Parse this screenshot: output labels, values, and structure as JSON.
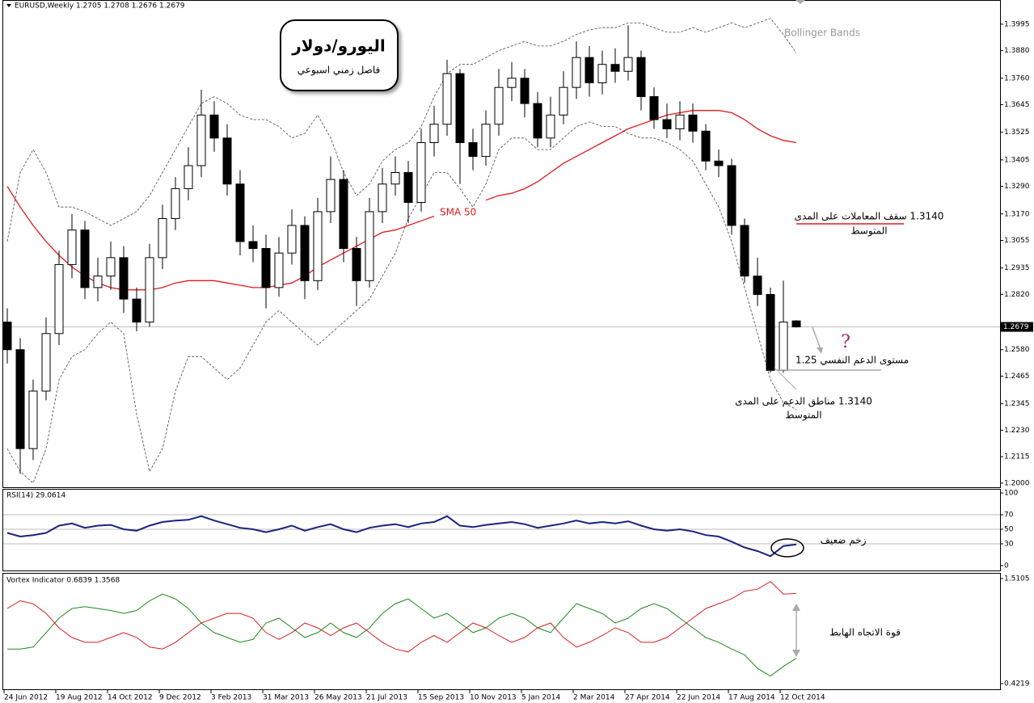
{
  "chart_data": [
    {
      "type": "candlestick",
      "title": "EURUSD,Weekly  1.2705 1.2708 1.2676 1.2679",
      "categories": [
        "24 Jun 2012",
        null,
        null,
        null,
        "19 Aug 2012",
        null,
        null,
        null,
        "14 Oct 2012",
        null,
        null,
        null,
        "9 Dec 2012",
        null,
        null,
        null,
        "3 Feb 2013",
        null,
        null,
        null,
        "31 Mar 2013",
        null,
        null,
        null,
        "26 May 2013",
        null,
        null,
        null,
        "21 Jul 2013",
        null,
        null,
        null,
        "15 Sep 2013",
        null,
        null,
        null,
        "10 Nov 2013",
        null,
        null,
        null,
        "5 Jan 2014",
        null,
        null,
        null,
        "2 Mar 2014",
        null,
        null,
        null,
        "27 Apr 2014",
        null,
        null,
        null,
        "22 Jun 2014",
        null,
        null,
        null,
        "17 Aug 2014",
        null,
        null,
        null,
        "12 Oct 2014",
        null
      ],
      "open": [
        1.27,
        1.258,
        1.215,
        1.24,
        1.265,
        1.295,
        1.31,
        1.285,
        1.29,
        1.298,
        1.28,
        1.27,
        1.298,
        1.315,
        1.328,
        1.338,
        1.36,
        1.35,
        1.33,
        1.305,
        1.302,
        1.285,
        1.3,
        1.312,
        1.288,
        1.318,
        1.332,
        1.302,
        1.288,
        1.318,
        1.33,
        1.335,
        1.322,
        1.348,
        1.356,
        1.378,
        1.348,
        1.342,
        1.356,
        1.372,
        1.376,
        1.365,
        1.35,
        1.36,
        1.372,
        1.385,
        1.374,
        1.382,
        1.379,
        1.385,
        1.368,
        1.358,
        1.354,
        1.36,
        1.353,
        1.34,
        1.338,
        1.312,
        1.29,
        1.282,
        1.249,
        1.2705
      ],
      "high": [
        1.276,
        1.263,
        1.245,
        1.272,
        1.301,
        1.317,
        1.314,
        1.298,
        1.305,
        1.303,
        1.285,
        1.304,
        1.321,
        1.333,
        1.346,
        1.371,
        1.366,
        1.356,
        1.336,
        1.312,
        1.308,
        1.307,
        1.319,
        1.316,
        1.324,
        1.342,
        1.336,
        1.307,
        1.324,
        1.337,
        1.342,
        1.34,
        1.354,
        1.364,
        1.384,
        1.38,
        1.354,
        1.362,
        1.38,
        1.383,
        1.38,
        1.37,
        1.368,
        1.379,
        1.392,
        1.39,
        1.388,
        1.389,
        1.399,
        1.388,
        1.372,
        1.365,
        1.366,
        1.365,
        1.356,
        1.345,
        1.341,
        1.315,
        1.298,
        1.285,
        1.288,
        1.2708
      ],
      "low": [
        1.252,
        1.204,
        1.21,
        1.236,
        1.26,
        1.289,
        1.28,
        1.279,
        1.284,
        1.274,
        1.266,
        1.268,
        1.293,
        1.31,
        1.323,
        1.333,
        1.344,
        1.325,
        1.299,
        1.296,
        1.276,
        1.281,
        1.295,
        1.28,
        1.284,
        1.313,
        1.296,
        1.277,
        1.285,
        1.313,
        1.325,
        1.313,
        1.318,
        1.342,
        1.351,
        1.33,
        1.336,
        1.338,
        1.351,
        1.366,
        1.359,
        1.346,
        1.346,
        1.356,
        1.367,
        1.368,
        1.369,
        1.374,
        1.375,
        1.362,
        1.354,
        1.35,
        1.349,
        1.348,
        1.336,
        1.333,
        1.308,
        1.287,
        1.277,
        1.248,
        1.248,
        1.2676
      ],
      "close": [
        1.258,
        1.215,
        1.24,
        1.265,
        1.295,
        1.31,
        1.285,
        1.29,
        1.298,
        1.28,
        1.27,
        1.298,
        1.315,
        1.328,
        1.338,
        1.36,
        1.35,
        1.33,
        1.305,
        1.302,
        1.285,
        1.3,
        1.312,
        1.288,
        1.318,
        1.332,
        1.302,
        1.288,
        1.318,
        1.33,
        1.335,
        1.322,
        1.348,
        1.356,
        1.378,
        1.348,
        1.342,
        1.356,
        1.372,
        1.376,
        1.365,
        1.35,
        1.36,
        1.372,
        1.385,
        1.374,
        1.382,
        1.379,
        1.385,
        1.368,
        1.358,
        1.354,
        1.36,
        1.353,
        1.34,
        1.338,
        1.312,
        1.29,
        1.282,
        1.249,
        1.27,
        1.2679
      ],
      "overlays": [
        {
          "name": "SMA 50",
          "color": "#e31a1c",
          "values": [
            1.329,
            1.32,
            1.312,
            1.305,
            1.299,
            1.294,
            1.29,
            1.287,
            1.285,
            1.284,
            1.284,
            1.284,
            1.285,
            1.287,
            1.288,
            1.288,
            1.288,
            1.287,
            1.286,
            1.285,
            1.285,
            1.286,
            1.287,
            1.29,
            1.294,
            1.297,
            1.3,
            1.303,
            1.306,
            1.309,
            1.31,
            1.312,
            1.314,
            1.316,
            null,
            null,
            null,
            1.323,
            1.325,
            1.326,
            1.328,
            1.331,
            1.335,
            1.339,
            1.342,
            1.345,
            1.348,
            1.351,
            1.354,
            1.356,
            1.358,
            1.36,
            1.361,
            1.362,
            1.362,
            1.362,
            1.361,
            1.358,
            1.354,
            1.351,
            1.349,
            1.348
          ]
        },
        {
          "color": "#444444",
          "dashed": true,
          "values": [
            1.305,
            1.335,
            1.345,
            1.335,
            1.32,
            1.32,
            1.318,
            1.315,
            1.312,
            1.315,
            1.318,
            1.325,
            1.335,
            1.345,
            1.355,
            1.365,
            1.368,
            1.365,
            1.36,
            1.358,
            1.358,
            1.355,
            1.35,
            1.352,
            1.36,
            1.35,
            1.335,
            1.325,
            1.33,
            1.34,
            1.345,
            1.348,
            1.355,
            1.368,
            1.378,
            1.382,
            1.382,
            1.385,
            1.388,
            1.39,
            1.392,
            1.39,
            1.39,
            1.392,
            1.395,
            1.397,
            1.398,
            1.398,
            1.4,
            1.4,
            1.398,
            1.396,
            1.396,
            1.398,
            1.396,
            1.398,
            1.4,
            1.398,
            1.4,
            1.402,
            1.395,
            1.387
          ]
        },
        {
          "color": "#444444",
          "dashed": true,
          "values": [
            1.215,
            1.205,
            1.2,
            1.215,
            1.245,
            1.255,
            1.258,
            1.265,
            1.27,
            1.265,
            1.23,
            1.205,
            1.215,
            1.24,
            1.255,
            1.255,
            1.25,
            1.245,
            1.25,
            1.26,
            1.27,
            1.275,
            1.27,
            1.265,
            1.26,
            1.265,
            1.27,
            1.275,
            1.28,
            1.29,
            1.3,
            1.315,
            1.325,
            1.335,
            1.335,
            1.328,
            1.32,
            1.33,
            1.345,
            1.35,
            1.35,
            1.345,
            1.345,
            1.35,
            1.355,
            1.357,
            1.355,
            1.355,
            1.352,
            1.35,
            1.35,
            1.348,
            1.345,
            1.34,
            1.33,
            1.32,
            1.305,
            1.285,
            1.265,
            1.245,
            1.235,
            1.232
          ]
        }
      ],
      "last_price": 1.2679,
      "ylim": [
        1.1982,
        1.41
      ],
      "yticks": [
        {
          "value": 1.2,
          "label": "1.2000"
        },
        {
          "value": 1.2115,
          "label": "1.2115"
        },
        {
          "value": 1.223,
          "label": "1.2230"
        },
        {
          "value": 1.2345,
          "label": "1.2345"
        },
        {
          "value": 1.2465,
          "label": "1.2465"
        },
        {
          "value": 1.258,
          "label": "1.2580"
        },
        {
          "value": 1.282,
          "label": "1.2820"
        },
        {
          "value": 1.2935,
          "label": "1.2935"
        },
        {
          "value": 1.3055,
          "label": "1.3055"
        },
        {
          "value": 1.317,
          "label": "1.3170"
        },
        {
          "value": 1.329,
          "label": "1.3290"
        },
        {
          "value": 1.3405,
          "label": "1.3405"
        },
        {
          "value": 1.3525,
          "label": "1.3525"
        },
        {
          "value": 1.3645,
          "label": "1.3645"
        },
        {
          "value": 1.376,
          "label": "1.3760"
        },
        {
          "value": 1.388,
          "label": "1.3880"
        },
        {
          "value": 1.3995,
          "label": "1.3995"
        }
      ]
    },
    {
      "type": "line",
      "title": "RSI(14) 29.0614",
      "series": [
        {
          "color": "#1a237e",
          "values": [
            45,
            40,
            42,
            45,
            55,
            58,
            52,
            55,
            56,
            50,
            48,
            55,
            60,
            62,
            63,
            68,
            62,
            57,
            52,
            50,
            46,
            50,
            55,
            48,
            53,
            57,
            50,
            46,
            52,
            55,
            57,
            53,
            58,
            60,
            68,
            55,
            53,
            56,
            58,
            60,
            57,
            52,
            55,
            58,
            62,
            58,
            60,
            58,
            61,
            55,
            50,
            48,
            50,
            47,
            42,
            40,
            33,
            25,
            20,
            13,
            27,
            29.0614
          ]
        }
      ],
      "ylim": [
        0,
        100
      ],
      "yticks": [
        100,
        70,
        50,
        30,
        0
      ],
      "grid": true
    },
    {
      "type": "line",
      "title": "Vortex Indicator 0.6839 1.3568",
      "series": [
        {
          "color": "#1b8a1b",
          "values": [
            0.78,
            0.78,
            0.8,
            0.95,
            1.1,
            1.2,
            1.22,
            1.2,
            1.18,
            1.15,
            1.18,
            1.28,
            1.35,
            1.3,
            1.2,
            1.05,
            0.95,
            0.9,
            0.85,
            0.88,
            1.05,
            1.1,
            1.0,
            0.9,
            0.95,
            1.05,
            0.95,
            0.9,
            1.0,
            1.15,
            1.25,
            1.3,
            1.2,
            1.1,
            1.15,
            1.05,
            0.95,
            1.0,
            1.1,
            1.15,
            1.1,
            1.0,
            0.95,
            1.1,
            1.25,
            1.2,
            1.15,
            1.05,
            1.1,
            1.2,
            1.25,
            1.2,
            1.1,
            1.0,
            0.9,
            0.85,
            0.78,
            0.72,
            0.58,
            0.5,
            0.6,
            0.6839
          ]
        },
        {
          "color": "#d62020",
          "values": [
            1.2,
            1.28,
            1.25,
            1.15,
            1.0,
            0.9,
            0.85,
            0.85,
            0.9,
            0.95,
            0.9,
            0.8,
            0.78,
            0.85,
            0.95,
            1.05,
            1.1,
            1.15,
            1.15,
            1.1,
            0.95,
            0.88,
            0.95,
            1.05,
            1.0,
            0.92,
            1.0,
            1.05,
            0.95,
            0.85,
            0.78,
            0.75,
            0.85,
            0.92,
            0.85,
            0.95,
            1.05,
            1.0,
            0.92,
            0.85,
            0.9,
            1.0,
            1.05,
            0.9,
            0.8,
            0.85,
            0.92,
            1.0,
            0.95,
            0.85,
            0.85,
            0.9,
            1.0,
            1.1,
            1.2,
            1.25,
            1.3,
            1.38,
            1.4,
            1.48,
            1.35,
            1.3568
          ]
        }
      ],
      "ylim": [
        0.4219,
        1.5105
      ],
      "yticks": [
        1.5105,
        0.4219
      ]
    }
  ],
  "annotations": {
    "title_main": "اليورو/دولار",
    "title_sub": "فاصل زمني اسبوعي",
    "bollinger": "Bollinger Bands",
    "resistance": "1.3140 سقف المعاملات على المدى",
    "resistance_2": "المتوسط",
    "question": "?",
    "support_psych": "مستوى الدعم النفسي 1.25",
    "support": "1.3140 مناطق الدعم على المدى",
    "support_2": "المتوسط",
    "rsi_note": "زخم ضعيف",
    "vortex_note": "قوة الاتجاه الهابط"
  }
}
